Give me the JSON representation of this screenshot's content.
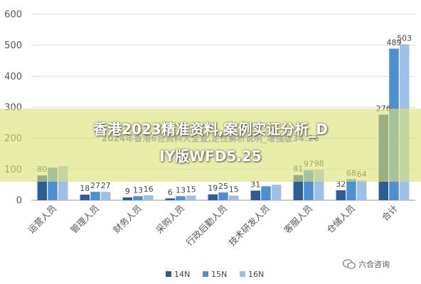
{
  "chart_data": {
    "type": "bar",
    "categories": [
      "运营人员",
      "管理人员",
      "财务人员",
      "采购人员",
      "行政后勤人员",
      "技术研发人员",
      "客服人员",
      "仓储人员",
      "合计"
    ],
    "series": [
      {
        "name": "14N",
        "color": "#2e5c94",
        "values": [
          80,
          18,
          9,
          6,
          19,
          31,
          81,
          32,
          276
        ]
      },
      {
        "name": "15N",
        "color": "#4e8fd0",
        "values": [
          105,
          27,
          13,
          13,
          25,
          45,
          97,
          68,
          489
        ]
      },
      {
        "name": "16N",
        "color": "#9fc0e6",
        "values": [
          110,
          27,
          16,
          15,
          15,
          50,
          98,
          64,
          503
        ]
      }
    ],
    "value_labels": [
      [
        "80",
        "",
        ""
      ],
      [
        "18",
        "27",
        "27"
      ],
      [
        "9",
        "13",
        "16"
      ],
      [
        "6",
        "13",
        "15"
      ],
      [
        "19",
        "25",
        "15"
      ],
      [
        "31",
        "",
        ""
      ],
      [
        "81",
        "97",
        "98"
      ],
      [
        "32",
        "68",
        "64"
      ],
      [
        "276",
        "489",
        "503"
      ]
    ],
    "ylim": [
      0,
      600
    ],
    "yticks": [
      "0",
      "100",
      "200",
      "300",
      "400",
      "500",
      "600"
    ],
    "grid": true,
    "legend_position": "bottom"
  },
  "overlay": {
    "title_line1": "香港2023精准资料,案例实证分析_D",
    "title_line2": "IY版WFD5.25",
    "subtitle": "2024年香港6合资料大全查,定性解析说明_增强版34.26",
    "watermark": "六合咨询"
  }
}
